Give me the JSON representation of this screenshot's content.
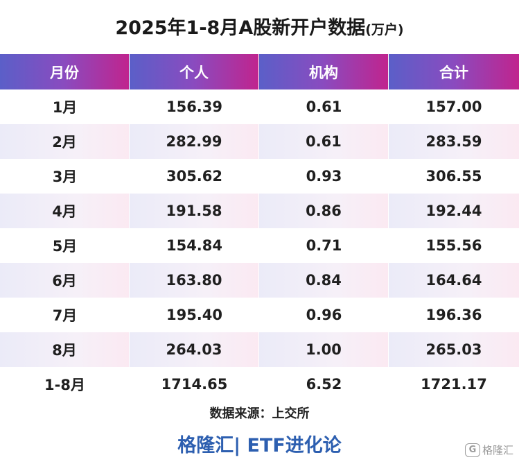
{
  "title": {
    "main": "2025年1-8月A股新开户数据",
    "unit": "(万户)"
  },
  "table": {
    "headers": [
      "月份",
      "个人",
      "机构",
      "合计"
    ],
    "rows": [
      [
        "1月",
        "156.39",
        "0.61",
        "157.00"
      ],
      [
        "2月",
        "282.99",
        "0.61",
        "283.59"
      ],
      [
        "3月",
        "305.62",
        "0.93",
        "306.55"
      ],
      [
        "4月",
        "191.58",
        "0.86",
        "192.44"
      ],
      [
        "5月",
        "154.84",
        "0.71",
        "155.56"
      ],
      [
        "6月",
        "163.80",
        "0.84",
        "164.64"
      ],
      [
        "7月",
        "195.40",
        "0.96",
        "196.36"
      ],
      [
        "8月",
        "264.03",
        "1.00",
        "265.03"
      ],
      [
        "1-8月",
        "1714.65",
        "6.52",
        "1721.17"
      ]
    ]
  },
  "source": "数据来源：上交所",
  "brand": "格隆汇| ETF进化论",
  "watermark": {
    "icon_glyph": "G",
    "text": "格隆汇"
  },
  "colors": {
    "header_gradient_start": "#5b5fc8",
    "header_gradient_mid": "#8a4bbf",
    "header_gradient_end": "#c0248e",
    "brand": "#2d5fb0",
    "alt_row_start": "#ebebf8",
    "alt_row_end": "#fbe9f2"
  }
}
